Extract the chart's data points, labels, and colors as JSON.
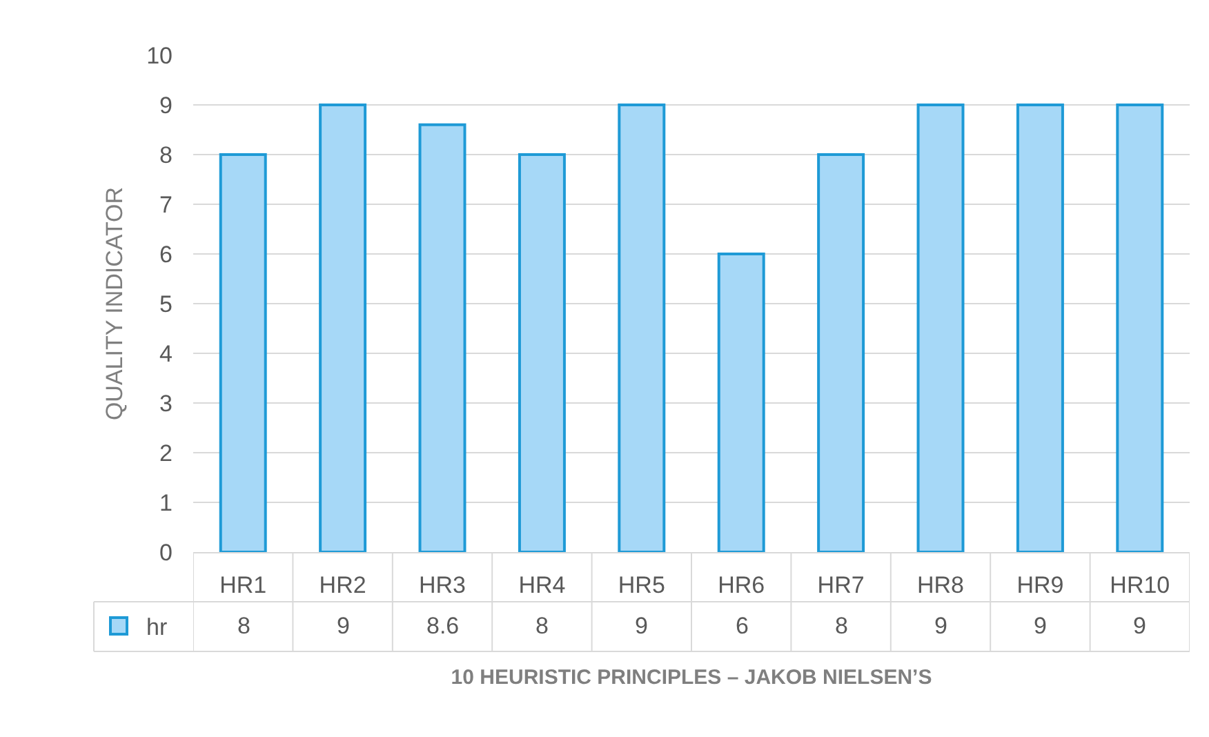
{
  "chart_data": {
    "type": "bar",
    "xlabel": "10 HEURISTIC PRINCIPLES – JAKOB NIELSEN’S",
    "ylabel": "QUALITY INDICATOR",
    "categories": [
      "HR1",
      "HR2",
      "HR3",
      "HR4",
      "HR5",
      "HR6",
      "HR7",
      "HR8",
      "HR9",
      "HR10"
    ],
    "series": [
      {
        "name": "hr",
        "color": "#a6d8f7",
        "values": [
          8,
          9,
          8.6,
          8,
          9,
          6,
          8,
          9,
          9,
          9
        ]
      }
    ],
    "ylim": [
      0,
      10
    ],
    "yticks": [
      0,
      1,
      2,
      3,
      4,
      5,
      6,
      7,
      8,
      9,
      10
    ],
    "grid": "y",
    "legend": "bottom left",
    "data_labels": true
  }
}
